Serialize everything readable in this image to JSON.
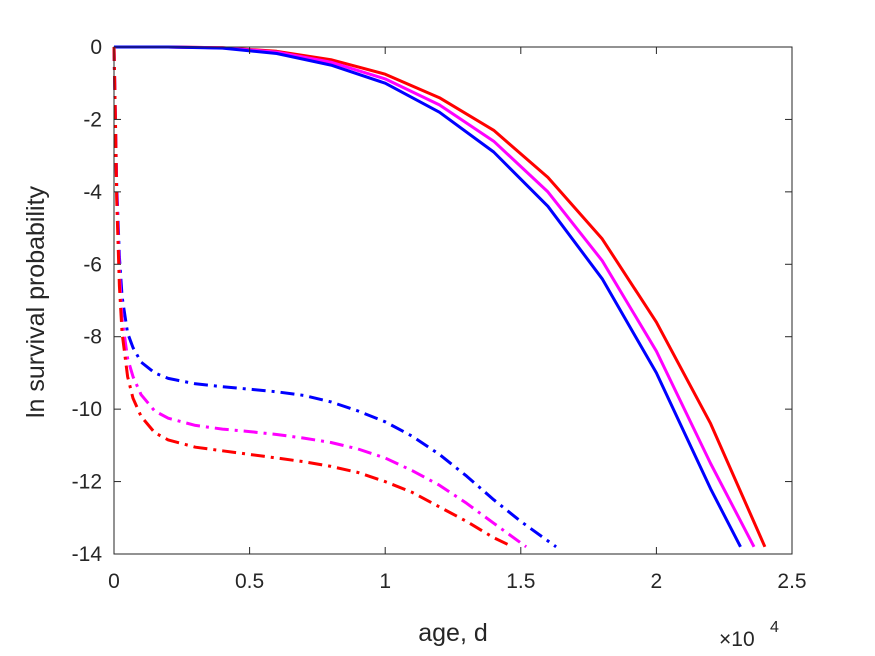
{
  "chart_data": {
    "type": "line",
    "xlabel": "age, d",
    "ylabel": "ln survival probability",
    "x_multiplier": {
      "base": "×10",
      "exponent": "4"
    },
    "xlim": [
      0,
      25000
    ],
    "ylim": [
      -14,
      0
    ],
    "xticks": [
      0,
      5000,
      10000,
      15000,
      20000,
      25000
    ],
    "xtick_labels": [
      "0",
      "0.5",
      "1",
      "1.5",
      "2",
      "2.5"
    ],
    "yticks": [
      0,
      -2,
      -4,
      -6,
      -8,
      -10,
      -12,
      -14
    ],
    "ytick_labels": [
      "0",
      "-2",
      "-4",
      "-6",
      "-8",
      "-10",
      "-12",
      "-14"
    ],
    "grid": false,
    "series": [
      {
        "color": "#ff0000",
        "style": "solid",
        "x": [
          0,
          2000,
          4000,
          6000,
          8000,
          10000,
          12000,
          14000,
          16000,
          18000,
          20000,
          22000,
          24000
        ],
        "y": [
          0,
          0,
          -0.02,
          -0.12,
          -0.35,
          -0.75,
          -1.4,
          -2.3,
          -3.6,
          -5.3,
          -7.6,
          -10.4,
          -13.8
        ]
      },
      {
        "color": "#ff00ff",
        "style": "solid",
        "x": [
          0,
          2000,
          4000,
          6000,
          8000,
          10000,
          12000,
          14000,
          16000,
          18000,
          20000,
          22000,
          23600
        ],
        "y": [
          0,
          0,
          -0.02,
          -0.14,
          -0.42,
          -0.88,
          -1.6,
          -2.6,
          -4.0,
          -5.9,
          -8.4,
          -11.5,
          -13.8
        ]
      },
      {
        "color": "#0000ff",
        "style": "solid",
        "x": [
          0,
          2000,
          4000,
          6000,
          8000,
          10000,
          12000,
          14000,
          16000,
          18000,
          20000,
          22000,
          23100
        ],
        "y": [
          0,
          0,
          -0.03,
          -0.18,
          -0.5,
          -1.0,
          -1.8,
          -2.9,
          -4.4,
          -6.4,
          -9.0,
          -12.2,
          -13.8
        ]
      },
      {
        "color": "#0000ff",
        "style": "dashdot",
        "x": [
          0,
          50,
          100,
          200,
          300,
          500,
          700,
          1000,
          1500,
          2000,
          3000,
          4000,
          5000,
          6000,
          7000,
          8000,
          9000,
          10000,
          11000,
          12000,
          13000,
          14000,
          15000,
          16300
        ],
        "y": [
          0,
          -2.0,
          -3.8,
          -5.8,
          -6.9,
          -7.9,
          -8.3,
          -8.7,
          -9.0,
          -9.15,
          -9.3,
          -9.38,
          -9.45,
          -9.52,
          -9.62,
          -9.8,
          -10.05,
          -10.35,
          -10.75,
          -11.25,
          -11.85,
          -12.5,
          -13.1,
          -13.8
        ]
      },
      {
        "color": "#ff00ff",
        "style": "dashdot",
        "x": [
          0,
          50,
          100,
          200,
          300,
          500,
          700,
          1000,
          1500,
          2000,
          3000,
          4000,
          5000,
          6000,
          7000,
          8000,
          9000,
          10000,
          11000,
          12000,
          13000,
          14000,
          15200
        ],
        "y": [
          0,
          -2.0,
          -4.0,
          -6.2,
          -7.5,
          -8.6,
          -9.1,
          -9.6,
          -10.05,
          -10.25,
          -10.45,
          -10.55,
          -10.62,
          -10.7,
          -10.8,
          -10.92,
          -11.1,
          -11.35,
          -11.7,
          -12.1,
          -12.6,
          -13.15,
          -13.8
        ]
      },
      {
        "color": "#ff0000",
        "style": "dashdot",
        "x": [
          0,
          50,
          100,
          200,
          300,
          500,
          700,
          1000,
          1500,
          2000,
          3000,
          4000,
          5000,
          6000,
          7000,
          8000,
          9000,
          10000,
          11000,
          12000,
          13000,
          14000,
          14700
        ],
        "y": [
          0,
          -2.0,
          -4.2,
          -6.6,
          -7.9,
          -9.1,
          -9.7,
          -10.2,
          -10.65,
          -10.85,
          -11.05,
          -11.15,
          -11.25,
          -11.35,
          -11.45,
          -11.58,
          -11.75,
          -12.0,
          -12.3,
          -12.7,
          -13.1,
          -13.55,
          -13.8
        ]
      }
    ]
  }
}
